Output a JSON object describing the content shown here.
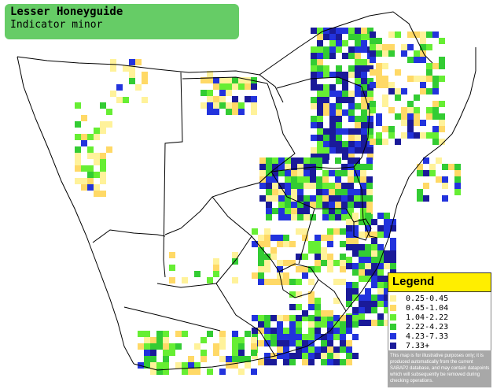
{
  "title": {
    "common_name": "Lesser Honeyguide",
    "scientific_name": "Indicator minor"
  },
  "legend": {
    "title": "Legend",
    "entries": [
      {
        "label": "0.25-0.45",
        "color": "#fff29a"
      },
      {
        "label": "0.45-1.04",
        "color": "#ffd966"
      },
      {
        "label": "1.04-2.22",
        "color": "#66ee33"
      },
      {
        "label": "2.22-4.23",
        "color": "#33cc33"
      },
      {
        "label": "4.23-7.33",
        "color": "#2233dd"
      },
      {
        "label": "7.33+",
        "color": "#1a1a99"
      }
    ],
    "disclaimer": "This map is for illustrative purposes only; it is produced automatically from the current SABAP2 database, and may contain datapoints which will subsequently be removed during checking operations."
  },
  "colors": {
    "title_box": "#66cc66",
    "legend_header": "#ffee00",
    "legend_footer": "#a8a8a8",
    "border_lines": "#000000"
  }
}
